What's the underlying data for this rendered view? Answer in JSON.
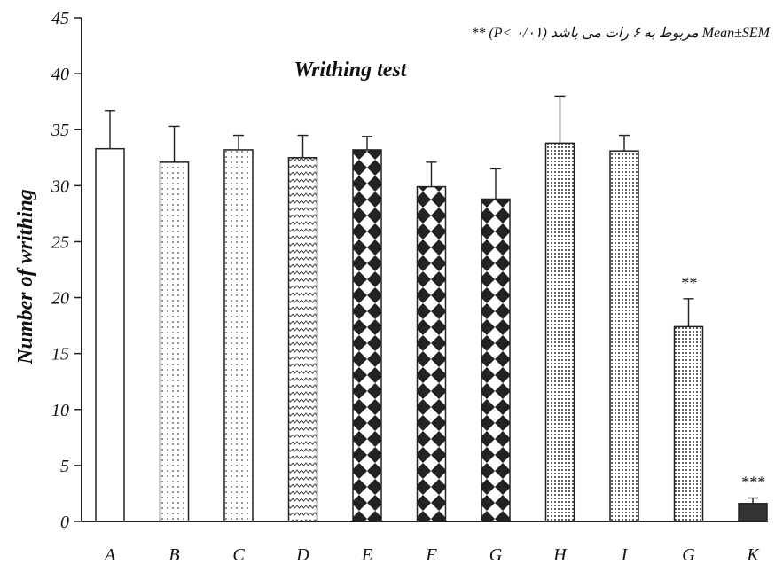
{
  "chart_data": {
    "type": "bar",
    "title": "Writhing test",
    "xlabel": "",
    "ylabel": "Number of writhing",
    "ylim": [
      0,
      45
    ],
    "yticks": [
      0,
      5,
      10,
      15,
      20,
      25,
      30,
      35,
      40,
      45
    ],
    "categories": [
      "A",
      "B",
      "C",
      "D",
      "E",
      "F",
      "G",
      "H",
      "I",
      "G",
      "K"
    ],
    "values": [
      33.3,
      32.1,
      33.2,
      32.5,
      33.2,
      29.9,
      28.8,
      33.8,
      33.1,
      17.4,
      1.6
    ],
    "errors": [
      3.4,
      3.2,
      1.3,
      2.0,
      1.2,
      2.2,
      2.7,
      4.2,
      1.4,
      2.5,
      0.5
    ],
    "patterns": [
      "blank",
      "dots",
      "dots",
      "waves",
      "diamonds",
      "diamonds",
      "diamonds",
      "dense-dots",
      "dense-dots",
      "dense-dots",
      "solid"
    ],
    "annotations": [
      "",
      "",
      "",
      "",
      "",
      "",
      "",
      "",
      "",
      "**",
      "***"
    ],
    "notes": [
      "** (P< ۰/۰۱) مربوط به ۶ رات می باشد Mean±SEM"
    ],
    "colors": {
      "bar_edge": "#222222",
      "solid_fill": "#333333",
      "axis": "#222222"
    }
  }
}
